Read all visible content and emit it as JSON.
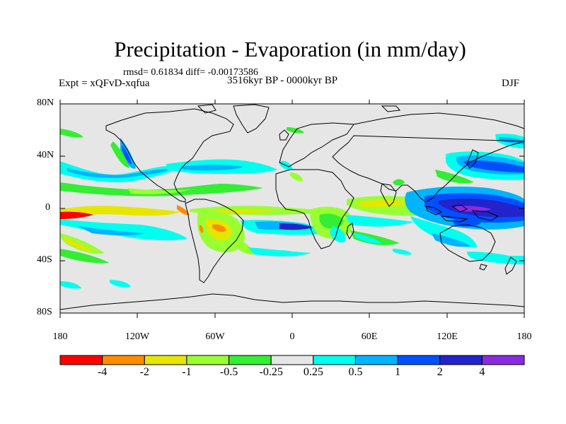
{
  "title": "Precipitation - Evaporation (in mm/day)",
  "stats": "rmsd= 0.61834 diff= -0.00173586",
  "experiment": "Expt = xQFvD-xqfua",
  "period": "3516kyr BP - 0000kyr BP",
  "season": "DJF",
  "map": {
    "lat_ticks": [
      "80N",
      "40N",
      "0",
      "40S",
      "80S"
    ],
    "lon_ticks": [
      "180",
      "120W",
      "60W",
      "0",
      "60E",
      "120E",
      "180"
    ],
    "background_color": "#e6e6e6"
  },
  "colorbar": {
    "colors": [
      "#ff0000",
      "#ff8c00",
      "#e6e600",
      "#99ff33",
      "#33ee33",
      "#e6e6e6",
      "#00ffee",
      "#00b4ff",
      "#0050ff",
      "#2323cc",
      "#8a2be2"
    ],
    "labels": [
      "-4",
      "-2",
      "-1",
      "-0.5",
      "-0.25",
      "0.25",
      "0.5",
      "1",
      "2",
      "4"
    ]
  }
}
